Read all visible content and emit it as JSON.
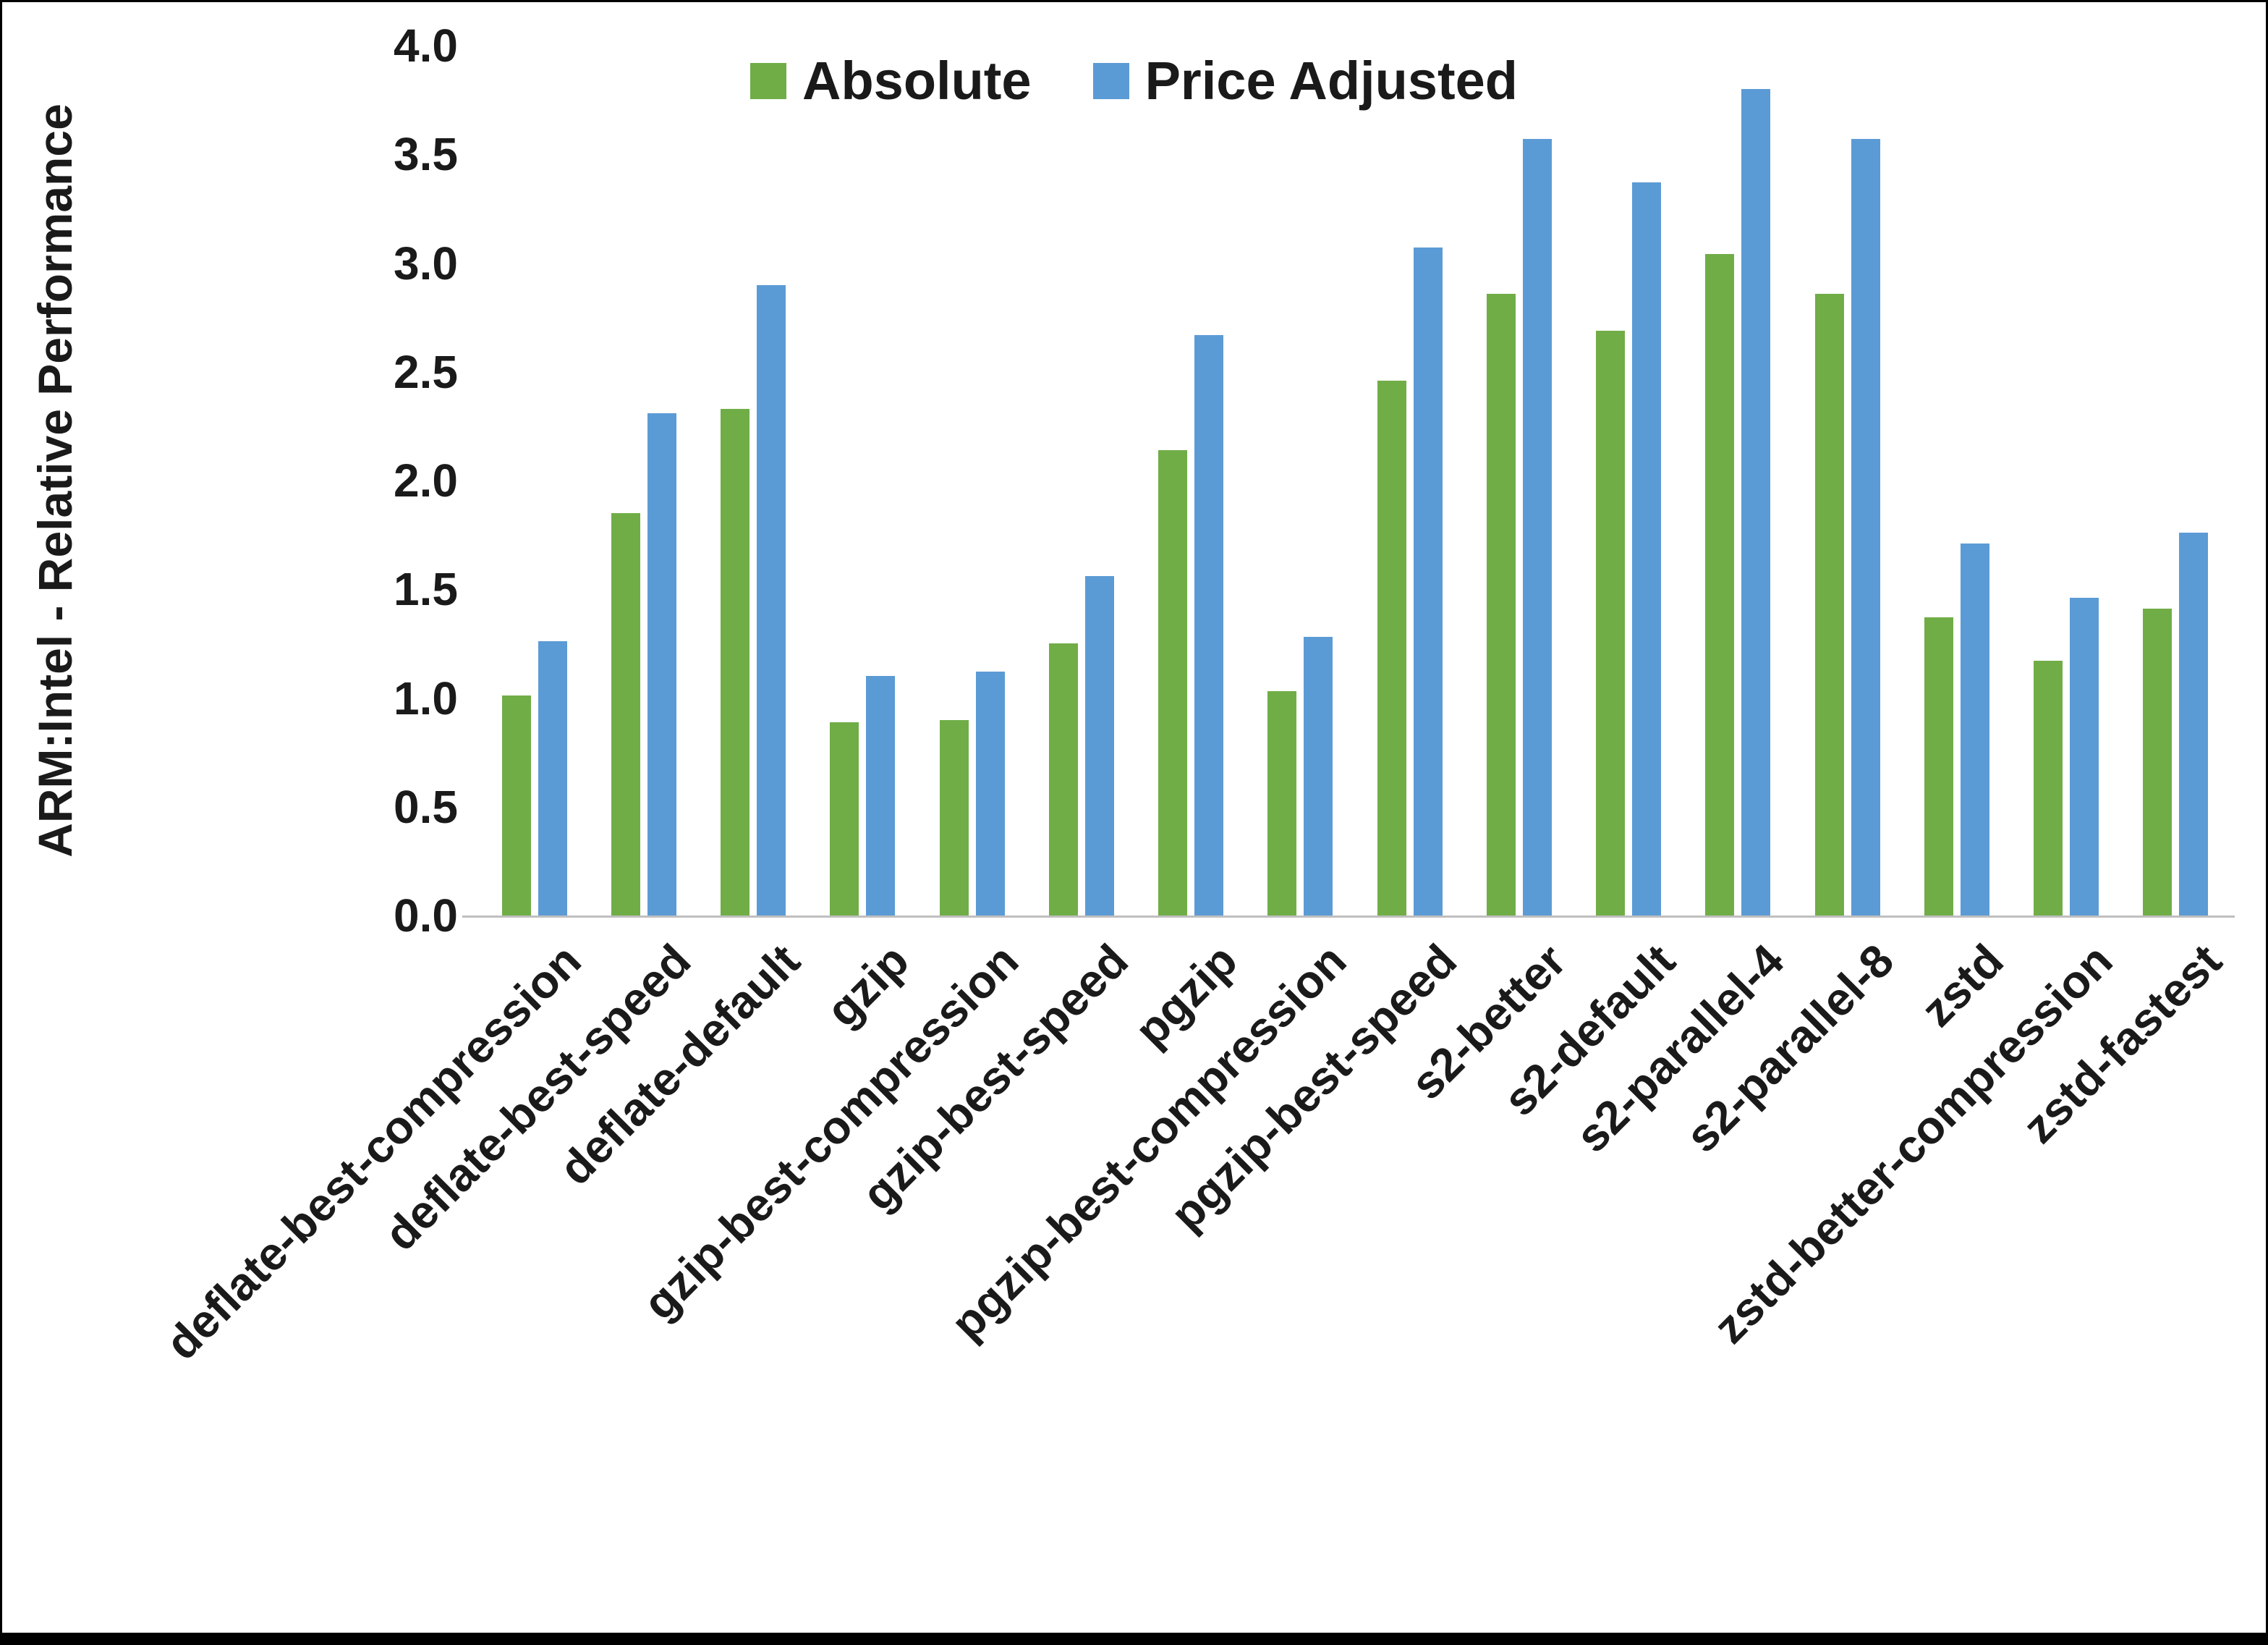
{
  "figure": {
    "background": "#FFFFFF",
    "border_color": "#000000",
    "axis_line_color": "#BFBFBF"
  },
  "chart_data": {
    "type": "bar",
    "title": "",
    "xlabel": "",
    "ylabel": "ARM:Intel - Relative Performance",
    "ylim": [
      0.0,
      4.0
    ],
    "ytick_step": 0.5,
    "ytick_labels": [
      "0.0",
      "0.5",
      "1.0",
      "1.5",
      "2.0",
      "2.5",
      "3.0",
      "3.5",
      "4.0"
    ],
    "grid": false,
    "legend_position": "top-center",
    "categories": [
      "deflate-best-compression",
      "deflate-best-speed",
      "deflate-default",
      "gzip",
      "gzip-best-compression",
      "gzip-best-speed",
      "pgzip",
      "pgzip-best-compression",
      "pgzip-best-speed",
      "s2-better",
      "s2-default",
      "s2-parallel-4",
      "s2-parallel-8",
      "zstd",
      "zstd-better-compression",
      "zstd-fastest"
    ],
    "series": [
      {
        "name": "Absolute",
        "color": "#70AD47",
        "values": [
          1.01,
          1.85,
          2.33,
          0.89,
          0.9,
          1.25,
          2.14,
          1.03,
          2.46,
          2.86,
          2.69,
          3.04,
          2.86,
          1.37,
          1.17,
          1.41
        ]
      },
      {
        "name": "Price Adjusted",
        "color": "#5B9BD5",
        "values": [
          1.26,
          2.31,
          2.9,
          1.1,
          1.12,
          1.56,
          2.67,
          1.28,
          3.07,
          3.57,
          3.37,
          3.8,
          3.57,
          1.71,
          1.46,
          1.76
        ]
      }
    ]
  }
}
